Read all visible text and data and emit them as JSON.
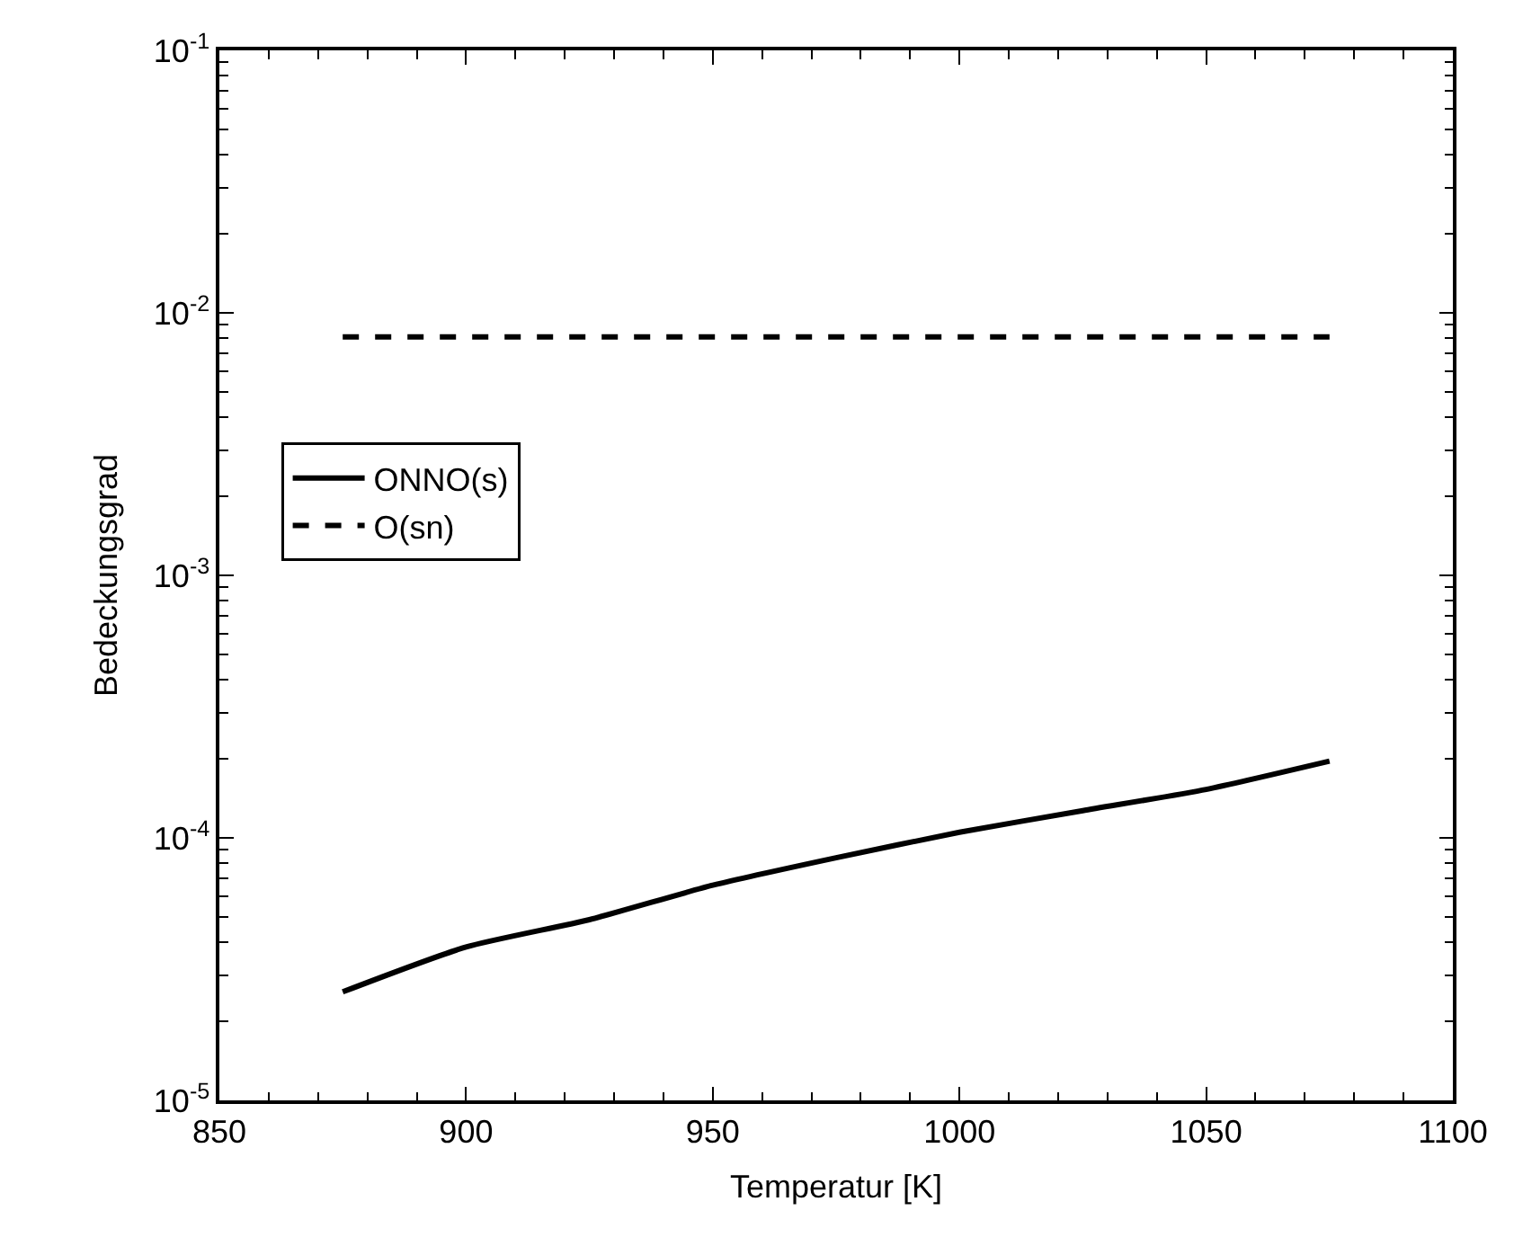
{
  "chart_data": {
    "type": "line",
    "xlabel": "Temperatur [K]",
    "ylabel": "Bedeckungsgrad",
    "log": "y",
    "xlim": [
      850,
      1100
    ],
    "xticks": [
      850,
      900,
      950,
      1000,
      1050,
      1100
    ],
    "ylim": [
      1e-05,
      0.1
    ],
    "yticks": [
      {
        "value": 1e-05,
        "label": "10$^{-5}$"
      },
      {
        "value": 0.0001,
        "label": "10$^{-4}$"
      },
      {
        "value": 0.001,
        "label": "10$^{-3}$"
      },
      {
        "value": 0.01,
        "label": "10$^{-2}$"
      },
      {
        "value": 0.1,
        "label": "10$^{-1}$"
      }
    ],
    "legend": "left",
    "marker": "none",
    "series": [
      {
        "name": "ONNO(s)",
        "color": "#000000",
        "line_style": "solid",
        "x": [
          875,
          900,
          925,
          950,
          975,
          1000,
          1025,
          1050,
          1075
        ],
        "values": [
          2.59e-05,
          3.84e-05,
          4.88e-05,
          6.6e-05,
          8.4e-05,
          0.000105,
          0.000127,
          0.000153,
          0.000196
        ]
      },
      {
        "name": "O(sn)",
        "color": "#000000",
        "line_style": "dashed",
        "x": [
          875,
          1075
        ],
        "values": [
          0.0081,
          0.0081
        ]
      }
    ]
  }
}
